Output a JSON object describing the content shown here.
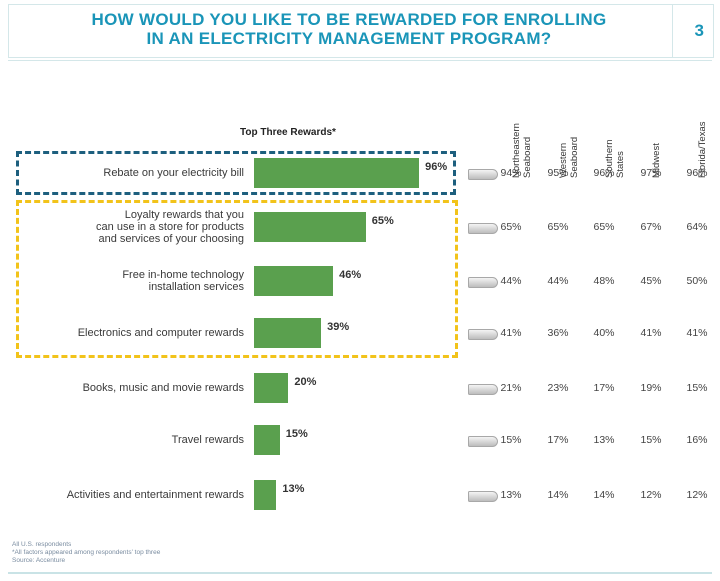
{
  "header": {
    "title_line1": "HOW WOULD YOU LIKE TO BE REWARDED FOR ENROLLING",
    "title_line2": "IN AN ELECTRICITY MANAGEMENT PROGRAM?",
    "page_number": "3"
  },
  "chart_data": {
    "type": "bar",
    "title": "Top Three Rewards*",
    "categories": [
      "Rebate on your electricity bill",
      "Loyalty rewards that you can use in a store for products and services of your choosing",
      "Free in-home technology installation services",
      "Electronics and computer rewards",
      "Books, music and movie rewards",
      "Travel rewards",
      "Activities and entertainment rewards"
    ],
    "category_labels": [
      "Rebate on your electricity bill",
      "Loyalty rewards that you\ncan use in a store for products\nand services of your choosing",
      "Free in-home technology\ninstallation services",
      "Electronics and computer rewards",
      "Books, music and movie rewards",
      "Travel rewards",
      "Activities and entertainment rewards"
    ],
    "values": [
      96,
      65,
      46,
      39,
      20,
      15,
      13
    ],
    "value_labels": [
      "96%",
      "65%",
      "46%",
      "39%",
      "20%",
      "15%",
      "13%"
    ],
    "xlim": [
      0,
      100
    ],
    "bar_color": "#5aa04e",
    "table": {
      "columns": [
        "Northeastern\nSeaboard",
        "Western\nSeaboard",
        "Southern\nStates",
        "Midwest",
        "Florida/Texas"
      ],
      "rows": [
        [
          "94%",
          "95%",
          "96%",
          "97%",
          "96%"
        ],
        [
          "65%",
          "65%",
          "65%",
          "67%",
          "64%"
        ],
        [
          "44%",
          "44%",
          "48%",
          "45%",
          "50%"
        ],
        [
          "41%",
          "36%",
          "40%",
          "41%",
          "41%"
        ],
        [
          "21%",
          "23%",
          "17%",
          "19%",
          "15%"
        ],
        [
          "15%",
          "17%",
          "13%",
          "15%",
          "16%"
        ],
        [
          "13%",
          "14%",
          "14%",
          "12%",
          "12%"
        ]
      ]
    },
    "highlight_colors": {
      "top_box": "#1d5f7e",
      "next_box": "#f2c31a"
    }
  },
  "footnotes": [
    "All U.S. respondents",
    "*All factors appeared among respondents' top three",
    "Source: Accenture"
  ],
  "colors": {
    "title": "#1a95b8",
    "bar": "#5aa04e"
  }
}
